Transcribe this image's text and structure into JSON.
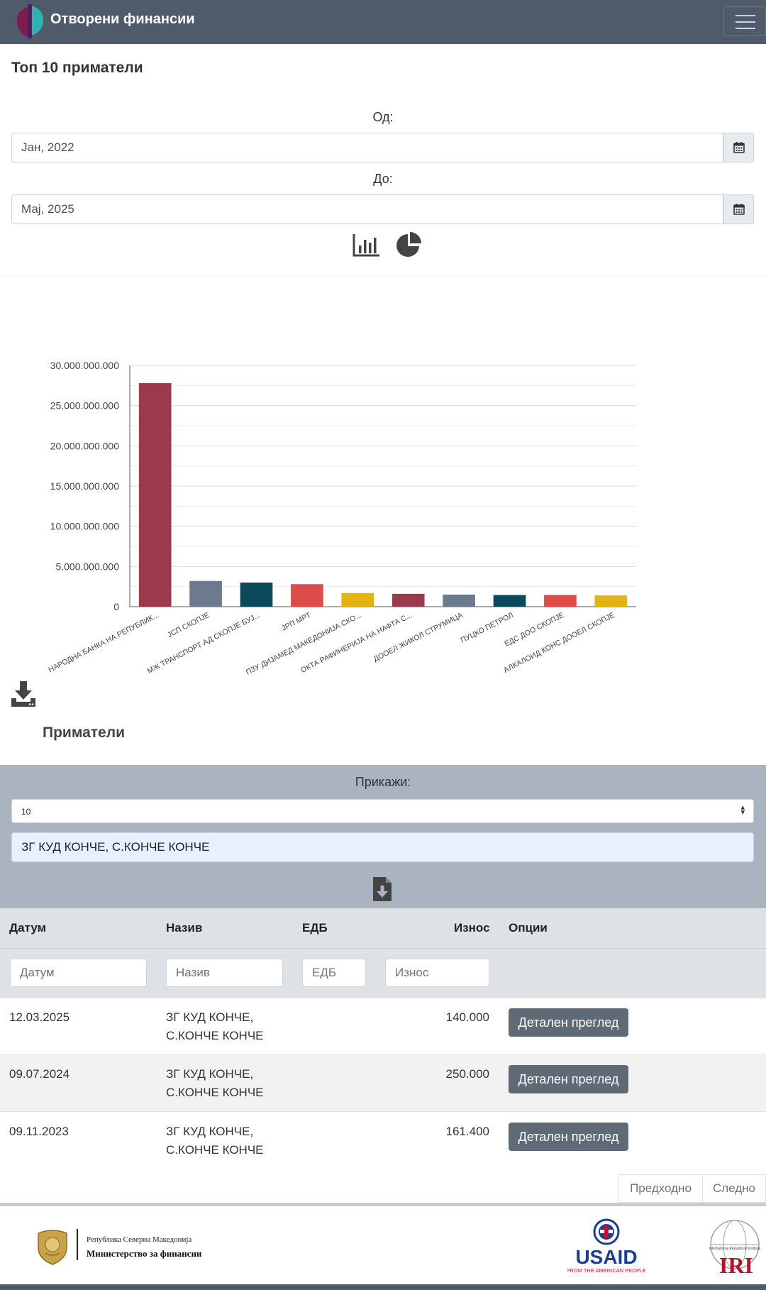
{
  "app": {
    "title": "Отворени финансии"
  },
  "page": {
    "title": "Топ 10 приматели"
  },
  "date_filter": {
    "from_label": "Од:",
    "from_value": "Јан, 2022",
    "to_label": "До:",
    "to_value": "Мај, 2025"
  },
  "icons": {
    "menu": "hamburger-icon",
    "calendar": "calendar-icon",
    "bar_chart_toggle": "bar-chart-icon",
    "pie_chart_toggle": "pie-chart-icon",
    "download_chart": "download-icon",
    "export_table": "file-download-icon",
    "dropdown": "sort-arrows-icon"
  },
  "colors": {
    "navbar": "#4f5b6b",
    "filter_panel": "#aab3c0",
    "table_header": "#dee2e6",
    "detail_button": "#5f6a77"
  },
  "chart_data": {
    "type": "bar",
    "categories": [
      "НАРОДНА БАНКА НА РЕПУБЛИК...",
      "ЈСП СКОПЈЕ",
      "МЖ ТРАНСПОРТ АД СКОПЈЕ БУЈ...",
      "ЈРП МРТ",
      "ПЗУ ДИЈАМЕД МАКЕДОНИЈА СКО...",
      "ОКТА РАФИНЕРИЈА НА НАФТА С...",
      "ДООЕЛ ЖИКОЛ СТРУМИЦА",
      "ПУЦКО ПЕТРОЛ",
      "ЕДС ДОО СКОПЈЕ",
      "АЛКАЛОИД КОНС ДООЕЛ СКОПЈЕ"
    ],
    "values": [
      27800000000,
      3200000000,
      3000000000,
      2800000000,
      1700000000,
      1600000000,
      1500000000,
      1450000000,
      1450000000,
      1400000000
    ],
    "colors": [
      "#9b3a4b",
      "#6c7a8e",
      "#0b4a5c",
      "#dc4c48",
      "#e2b413",
      "#9b3a4b",
      "#6c7a8e",
      "#0b4a5c",
      "#dc4c48",
      "#e2b413"
    ],
    "yticks": [
      "0",
      "5.000.000.000",
      "10.000.000.000",
      "15.000.000.000",
      "20.000.000.000",
      "25.000.000.000",
      "30.000.000.000"
    ],
    "ylim": [
      0,
      30000000000
    ],
    "grid": true,
    "title": "",
    "xlabel": "",
    "ylabel": ""
  },
  "recipients": {
    "title": "Приматели",
    "show_label": "Прикажи:",
    "page_size": "10",
    "search_value": "ЗГ КУД КОНЧЕ, С.КОНЧЕ КОНЧЕ"
  },
  "table": {
    "headers": {
      "date": "Датум",
      "name": "Назив",
      "edb": "ЕДБ",
      "amount": "Износ",
      "options": "Опции"
    },
    "placeholders": {
      "date": "Датум",
      "name": "Назив",
      "edb": "ЕДБ",
      "amount": "Износ"
    },
    "detail_label": "Детален преглед",
    "rows": [
      {
        "date": "12.03.2025",
        "name_line1": "ЗГ КУД КОНЧЕ,",
        "name_line2": "С.КОНЧЕ КОНЧЕ",
        "edb": "",
        "amount": "140.000"
      },
      {
        "date": "09.07.2024",
        "name_line1": "ЗГ КУД КОНЧЕ,",
        "name_line2": "С.КОНЧЕ КОНЧЕ",
        "edb": "",
        "amount": "250.000"
      },
      {
        "date": "09.11.2023",
        "name_line1": "ЗГ КУД КОНЧЕ,",
        "name_line2": "С.КОНЧЕ КОНЧЕ",
        "edb": "",
        "amount": "161.400"
      }
    ]
  },
  "pagination": {
    "prev": "Предходно",
    "next": "Следно"
  },
  "footer": {
    "ministry_line1": "Република Северна Македонија",
    "ministry_line2": "Министерство за финансии",
    "usaid_text": "USAID",
    "usaid_tagline": "FROM THE AMERICAN PEOPLE",
    "iri_text": "IRI",
    "iri_small": "International Republican Institute"
  }
}
